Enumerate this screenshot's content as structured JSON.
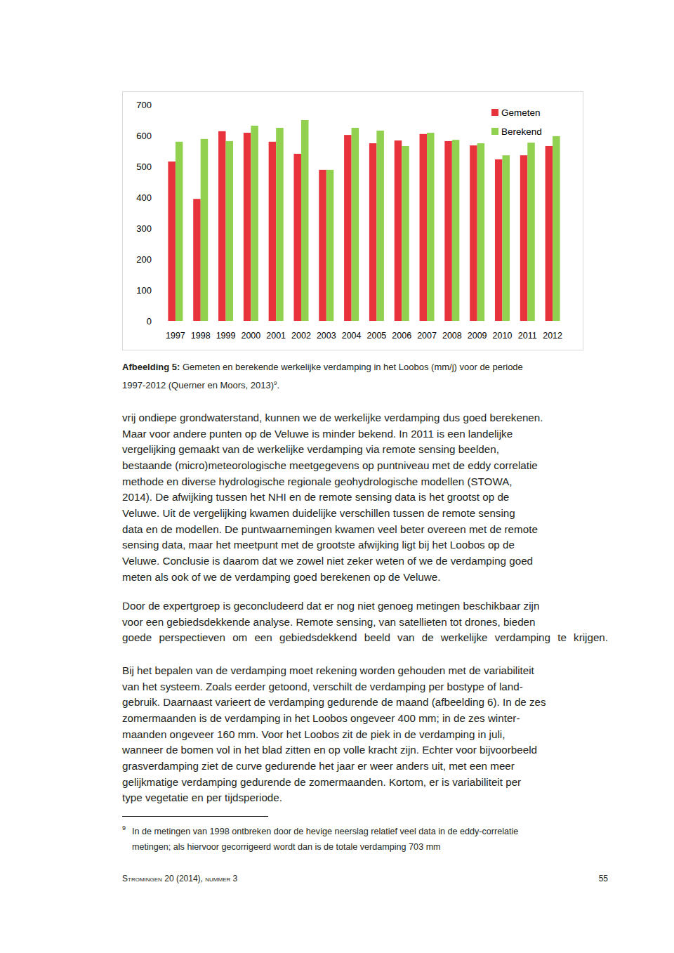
{
  "chart_data": {
    "type": "bar",
    "categories": [
      "1997",
      "1998",
      "1999",
      "2000",
      "2001",
      "2002",
      "2003",
      "2004",
      "2005",
      "2006",
      "2007",
      "2008",
      "2009",
      "2010",
      "2011",
      "2012"
    ],
    "series": [
      {
        "name": "Gemeten",
        "color": "#e8333c",
        "values": [
          516,
          395,
          614,
          609,
          580,
          541,
          489,
          602,
          575,
          584,
          605,
          582,
          568,
          523,
          536,
          566
        ]
      },
      {
        "name": "Berekend",
        "color": "#92d050",
        "values": [
          580,
          589,
          582,
          632,
          625,
          650,
          489,
          625,
          616,
          566,
          609,
          586,
          575,
          536,
          577,
          598
        ]
      }
    ],
    "ylim": [
      0,
      700
    ],
    "yticks": [
      0,
      100,
      200,
      300,
      400,
      500,
      600,
      700
    ],
    "grid": false,
    "legend": "top-right"
  },
  "caption": {
    "label": "Afbeelding 5:",
    "lines": [
      "Gemeten en berekende werkelijke verdamping in het Loobos (mm/j) voor de periode",
      "1997-2012 (Querner en Moors, 2013)"
    ],
    "note_ref": "9",
    "end": "."
  },
  "paragraphs": [
    {
      "lines": [
        "vrij ondiepe grondwaterstand, kunnen we de werkelijke verdamping dus goed berekenen.",
        "Maar voor andere punten op de Veluwe is minder bekend. In 2011 is een landelijke",
        "vergelijking gemaakt van de werkelijke verdamping via remote sensing beelden,",
        "bestaande (micro)meteorologische meetgegevens op puntniveau met de eddy correlatie",
        "methode en diverse hydrologische regionale geohydrologische modellen (STOWA,",
        "2014). De afwijking tussen het NHI en de remote sensing data is het grootst op de",
        "Veluwe. Uit de vergelijking kwamen duidelijke verschillen tussen de remote sensing",
        "data en de modellen. De puntwaarnemingen kwamen veel beter overeen met de remote",
        "sensing data, maar het meetpunt met de grootste afwijking ligt bij het Loobos op de",
        "Veluwe. Conclusie is daarom dat we zowel niet zeker weten of we de verdamping goed",
        "meten als ook of we de verdamping goed berekenen op de Veluwe."
      ]
    },
    {
      "lines": [
        "Door de expertgroep is geconcludeerd dat er nog niet genoeg metingen beschikbaar zijn",
        "voor een gebiedsdekkende analyse. Remote sensing, van satellieten tot drones, bieden",
        "goede perspectieven om een gebiedsdekkend beeld van de werkelijke verdamping te krijgen."
      ]
    },
    {
      "lines": [
        "Bij het bepalen van de verdamping moet rekening worden gehouden met de variabiliteit",
        "van het systeem. Zoals eerder getoond, verschilt de verdamping per bostype of land-",
        "gebruik. Daarnaast varieert de verdamping gedurende de maand (afbeelding 6). In de zes",
        "zomermaanden is de verdamping in het Loobos ongeveer 400 mm; in de zes winter-",
        "maanden ongeveer 160 mm. Voor het Loobos zit de piek in de verdamping in juli,",
        "wanneer de bomen vol in het blad zitten en op volle kracht zijn. Echter voor bijvoorbeeld",
        "grasverdamping ziet de curve gedurende het jaar er weer anders uit, met een meer",
        "gelijkmatige verdamping gedurende de zomermaanden. Kortom, er is variabiliteit per",
        "type vegetatie en per tijdsperiode."
      ]
    }
  ],
  "footnote": {
    "number": "9",
    "lines": [
      "In de metingen van 1998 ontbreken door de hevige neerslag relatief veel data in de eddy-correlatie",
      "metingen; als hiervoor gecorrigeerd wordt dan is de totale verdamping 703 mm"
    ]
  },
  "footer": {
    "journal": "Stromingen 20 (2014), nummer 3",
    "page": 55
  }
}
